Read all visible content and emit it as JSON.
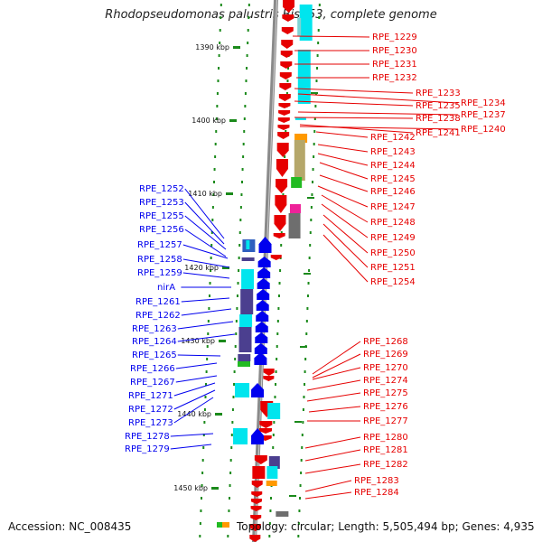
{
  "title": "Rhodopseudomonas palustris BisA53, complete genome",
  "accession": "Accession: NC_008435",
  "topology": "Topology: circular; Length: 5,505,494 bp; Genes: 4,935",
  "colors": {
    "forward": "#e60000",
    "reverse": "#0000ee",
    "cyan": "#00e5ee",
    "purple": "#4b3f8f",
    "green": "#22bb22",
    "khaki": "#b5a76a",
    "gray": "#6e6e6e",
    "magenta": "#ee2299",
    "orange": "#ff9900"
  },
  "kbp_ticks": [
    "1390 kbp",
    "1400 kbp",
    "1410 kbp",
    "1420 kbp",
    "1430 kbp",
    "1440 kbp",
    "1450 kbp"
  ],
  "right_labels": [
    "RPE_1229",
    "RPE_1230",
    "RPE_1231",
    "RPE_1232",
    "RPE_1233",
    "RPE_1234",
    "RPE_1235",
    "RPE_1237",
    "RPE_1238",
    "RPE_1240",
    "RPE_1241",
    "RPE_1242",
    "RPE_1243",
    "RPE_1244",
    "RPE_1245",
    "RPE_1246",
    "RPE_1247",
    "RPE_1248",
    "RPE_1249",
    "RPE_1250",
    "RPE_1251",
    "RPE_1254",
    "RPE_1268",
    "RPE_1269",
    "RPE_1270",
    "RPE_1274",
    "RPE_1275",
    "RPE_1276",
    "RPE_1277",
    "RPE_1280",
    "RPE_1281",
    "RPE_1282",
    "RPE_1283",
    "RPE_1284"
  ],
  "left_labels": [
    "RPE_1252",
    "RPE_1253",
    "RPE_1255",
    "RPE_1256",
    "RPE_1257",
    "RPE_1258",
    "RPE_1259",
    "nirA",
    "RPE_1261",
    "RPE_1262",
    "RPE_1263",
    "RPE_1264",
    "RPE_1265",
    "RPE_1266",
    "RPE_1267",
    "RPE_1271",
    "RPE_1272",
    "RPE_1273",
    "RPE_1278",
    "RPE_1279"
  ]
}
